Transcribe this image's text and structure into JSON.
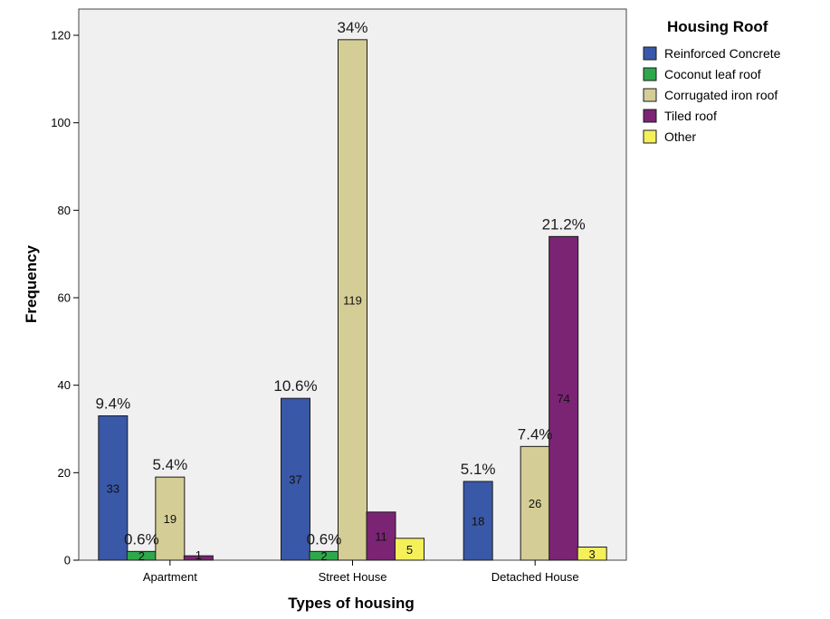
{
  "chart_data": {
    "type": "bar",
    "xlabel": "Types of housing",
    "ylabel": "Frequency",
    "ylim": [
      0,
      126
    ],
    "yticks": [
      0,
      20,
      40,
      60,
      80,
      100,
      120
    ],
    "categories": [
      "Apartment",
      "Street House",
      "Detached House"
    ],
    "legend_title": "Housing Roof",
    "legend_position": "right",
    "grid": false,
    "series": [
      {
        "name": "Reinforced Concrete",
        "color": "#3a58a8",
        "values": [
          33,
          37,
          18
        ],
        "count_labels": [
          "33",
          "37",
          "18"
        ],
        "percent_labels": [
          "9.4%",
          "10.6%",
          "5.1%"
        ]
      },
      {
        "name": "Coconut leaf roof",
        "color": "#2ea84a",
        "values": [
          2,
          2,
          0
        ],
        "count_labels": [
          "2",
          "2",
          ""
        ],
        "percent_labels": [
          "0.6%",
          "0.6%",
          ""
        ]
      },
      {
        "name": "Corrugated iron roof",
        "color": "#d4cd96",
        "values": [
          19,
          119,
          26
        ],
        "count_labels": [
          "19",
          "119",
          "26"
        ],
        "percent_labels": [
          "5.4%",
          "34%",
          "7.4%"
        ]
      },
      {
        "name": "Tiled roof",
        "color": "#7b2474",
        "values": [
          1,
          11,
          74
        ],
        "count_labels": [
          "1",
          "11",
          "74"
        ],
        "percent_labels": [
          "",
          "",
          "21.2%"
        ]
      },
      {
        "name": "Other",
        "color": "#f5f05a",
        "values": [
          0,
          5,
          3
        ],
        "count_labels": [
          "",
          "5",
          "3"
        ],
        "percent_labels": [
          "",
          "",
          ""
        ]
      }
    ]
  }
}
